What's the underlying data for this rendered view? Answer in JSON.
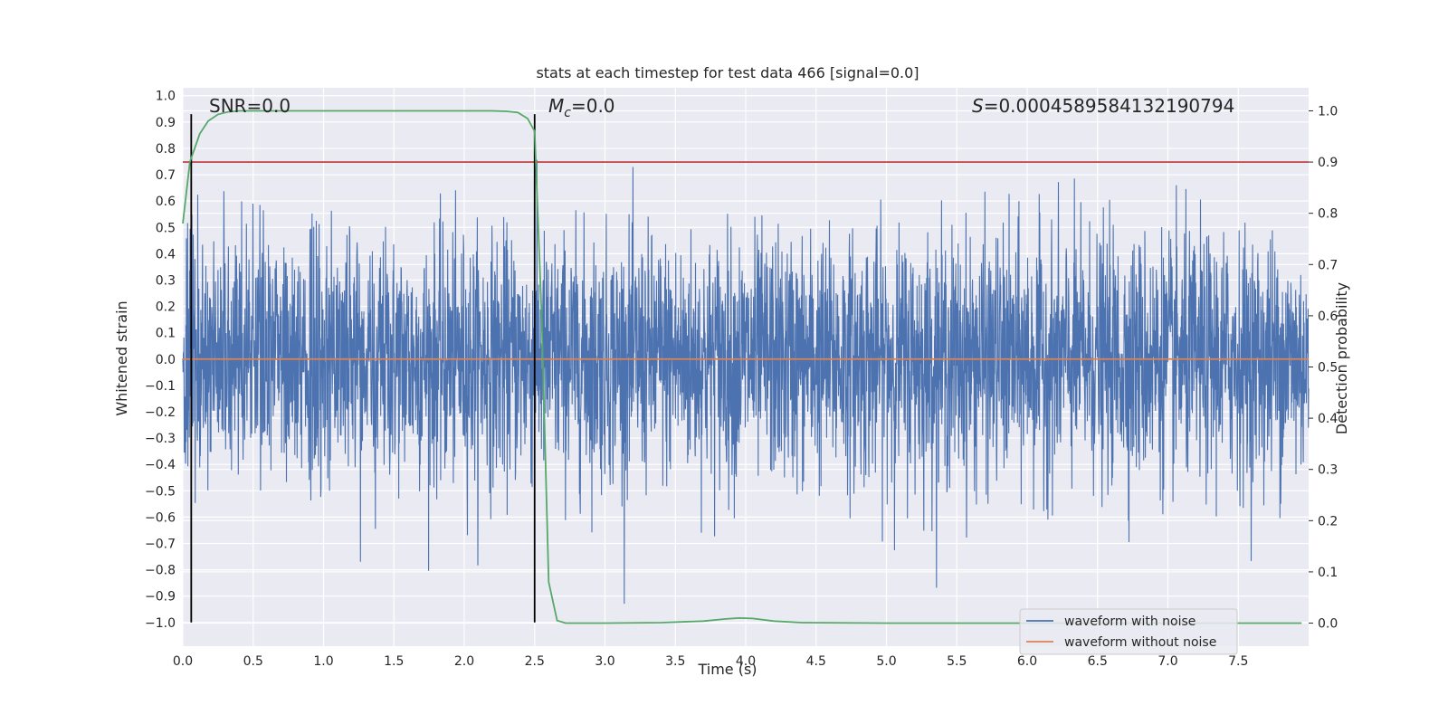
{
  "chart_data": {
    "type": "line",
    "title": "stats at each timestep for test data 466 [signal=0.0]",
    "xlabel": "Time (s)",
    "ylabel_left": "Whitened strain",
    "ylabel_right": "Detection probability",
    "xlim": [
      0.0,
      8.0
    ],
    "ylim_left": [
      -1.09,
      1.03
    ],
    "ylim_right": [
      -0.045,
      1.045
    ],
    "xticks": [
      "0.0",
      "0.5",
      "1.0",
      "1.5",
      "2.0",
      "2.5",
      "3.0",
      "3.5",
      "4.0",
      "4.5",
      "5.0",
      "5.5",
      "6.0",
      "6.5",
      "7.0",
      "7.5"
    ],
    "yticks_left": [
      "1.0",
      "0.9",
      "0.8",
      "0.7",
      "0.6",
      "0.5",
      "0.4",
      "0.3",
      "0.2",
      "0.1",
      "0.0",
      "-0.1",
      "-0.2",
      "-0.3",
      "-0.4",
      "-0.5",
      "-0.6",
      "-0.7",
      "-0.8",
      "-0.9",
      "-1.0"
    ],
    "yticks_right": [
      "1.0",
      "0.9",
      "0.8",
      "0.7",
      "0.6",
      "0.5",
      "0.4",
      "0.3",
      "0.2",
      "0.1",
      "0.0"
    ],
    "grid": true,
    "series": [
      {
        "name": "waveform with noise",
        "axis": "left",
        "color": "#4c72b0",
        "description": "dense whitened noise, amplitude mostly within ±0.55, peaks to about ±0.93",
        "amplitude_core": 0.55,
        "amplitude_peak": 0.93,
        "time_range": [
          0.0,
          8.0
        ]
      },
      {
        "name": "waveform without noise",
        "axis": "left",
        "color": "#dd8452",
        "x": [
          0.0,
          8.0
        ],
        "y": [
          0.0,
          0.0
        ]
      },
      {
        "name": "detection probability",
        "axis": "right",
        "color": "#55a868",
        "x": [
          0.0,
          0.05,
          0.12,
          0.18,
          0.25,
          0.32,
          0.4,
          0.6,
          1.0,
          1.5,
          2.0,
          2.2,
          2.3,
          2.38,
          2.45,
          2.5,
          2.55,
          2.6,
          2.66,
          2.72,
          2.8,
          3.0,
          3.4,
          3.7,
          3.85,
          3.95,
          4.05,
          4.2,
          4.4,
          5.0,
          6.0,
          7.0,
          7.95
        ],
        "y": [
          0.78,
          0.9,
          0.955,
          0.98,
          0.993,
          0.998,
          1.0,
          1.0,
          1.0,
          1.0,
          1.0,
          1.0,
          0.999,
          0.997,
          0.985,
          0.96,
          0.6,
          0.08,
          0.005,
          0.0,
          0.0,
          0.0,
          0.001,
          0.004,
          0.008,
          0.01,
          0.009,
          0.004,
          0.001,
          0.0,
          0.0,
          0.0,
          0.0
        ]
      }
    ],
    "threshold_line": {
      "axis": "right",
      "value": 0.9,
      "color": "#c44e52"
    },
    "vertical_markers": [
      {
        "x": 0.06,
        "ymin": -1.0,
        "ymax": 0.93,
        "color": "#000000"
      },
      {
        "x": 2.5,
        "ymin": -1.0,
        "ymax": 0.93,
        "color": "#000000"
      }
    ],
    "annotations": {
      "snr": "SNR=0.0",
      "mc_symbol": "M",
      "mc_subscript": "c",
      "mc_value": "=0.0",
      "s_symbol": "S",
      "s_value": "=0.0004589584132190794"
    },
    "legend_position": "lower right",
    "legend_entries": [
      "waveform with noise",
      "waveform without noise"
    ],
    "colors": {
      "background": "#eaeaf2",
      "grid": "#ffffff",
      "text": "#262626"
    }
  }
}
